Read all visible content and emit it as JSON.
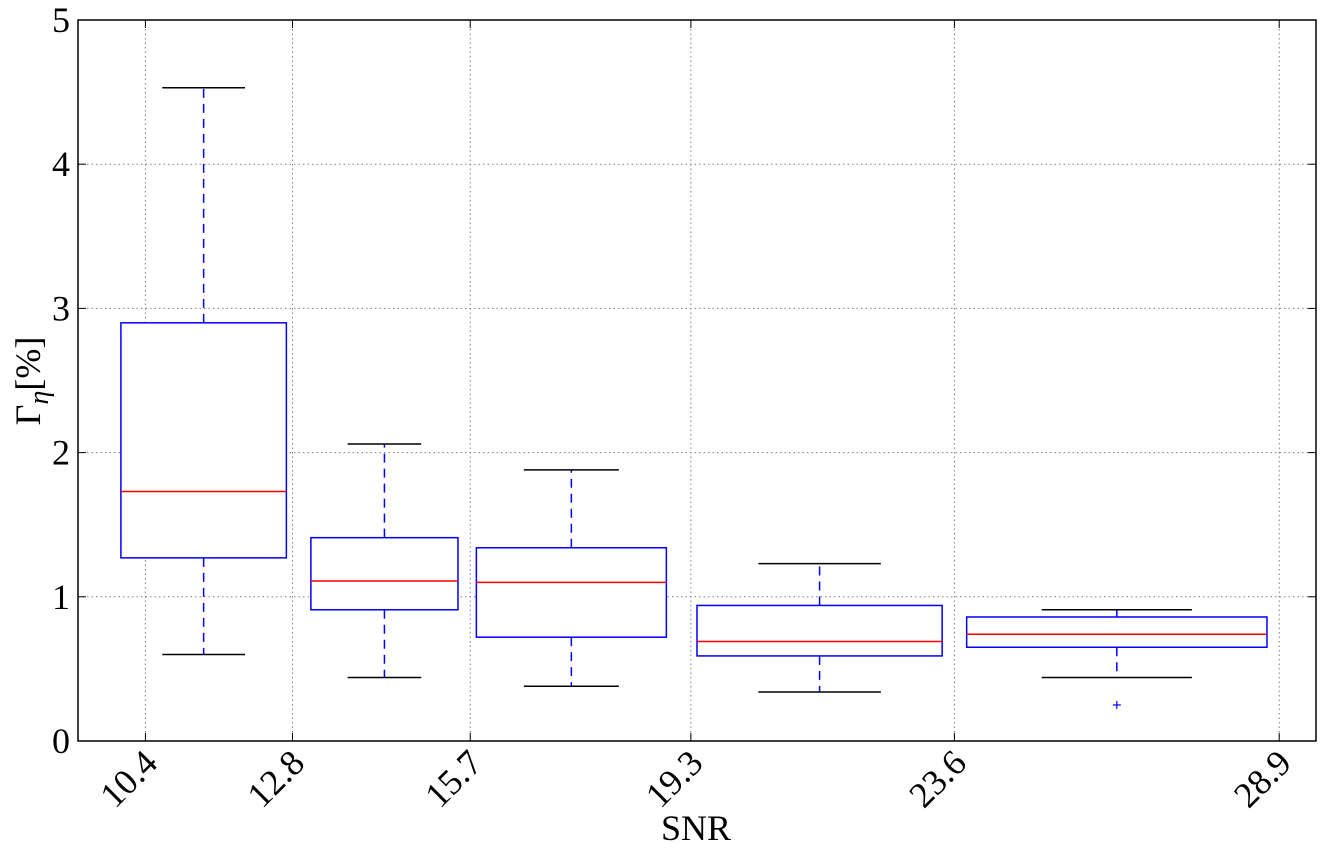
{
  "chart_data": {
    "type": "boxplot",
    "title": "",
    "xlabel": "SNR",
    "ylabel": "Γ",
    "ylabel_subscript": "η",
    "ylabel_suffix": "[%]",
    "ylim": [
      0,
      5
    ],
    "xlim": [
      9.3,
      29.5
    ],
    "yticks": [
      0,
      1,
      2,
      3,
      4,
      5
    ],
    "yticklabels": [
      "0",
      "1",
      "2",
      "3",
      "4",
      "5"
    ],
    "xticks": [
      10.4,
      12.8,
      15.7,
      19.3,
      23.6,
      28.9
    ],
    "xticklabels": [
      "10.4",
      "12.8",
      "15.7",
      "19.3",
      "23.6",
      "28.9"
    ],
    "grid": true,
    "boxes": [
      {
        "x_left": 10.0,
        "x_right": 12.7,
        "whisker_low": 0.6,
        "q1": 1.27,
        "median": 1.73,
        "q3": 2.9,
        "whisker_high": 4.53,
        "outliers": []
      },
      {
        "x_left": 13.1,
        "x_right": 15.5,
        "whisker_low": 0.44,
        "q1": 0.91,
        "median": 1.11,
        "q3": 1.41,
        "whisker_high": 2.06,
        "outliers": []
      },
      {
        "x_left": 15.8,
        "x_right": 18.9,
        "whisker_low": 0.38,
        "q1": 0.72,
        "median": 1.1,
        "q3": 1.34,
        "whisker_high": 1.88,
        "outliers": []
      },
      {
        "x_left": 19.4,
        "x_right": 23.4,
        "whisker_low": 0.34,
        "q1": 0.59,
        "median": 0.69,
        "q3": 0.94,
        "whisker_high": 1.23,
        "outliers": []
      },
      {
        "x_left": 23.8,
        "x_right": 28.7,
        "whisker_low": 0.44,
        "q1": 0.65,
        "median": 0.74,
        "q3": 0.86,
        "whisker_high": 0.91,
        "outliers": [
          0.25
        ]
      }
    ],
    "colors": {
      "box": "#0000ff",
      "whisker": "#0000ff",
      "cap": "#000000",
      "median": "#ff0000",
      "outlier": "#0000ff",
      "grid": "#7f7f7f",
      "axis": "#000000"
    }
  }
}
